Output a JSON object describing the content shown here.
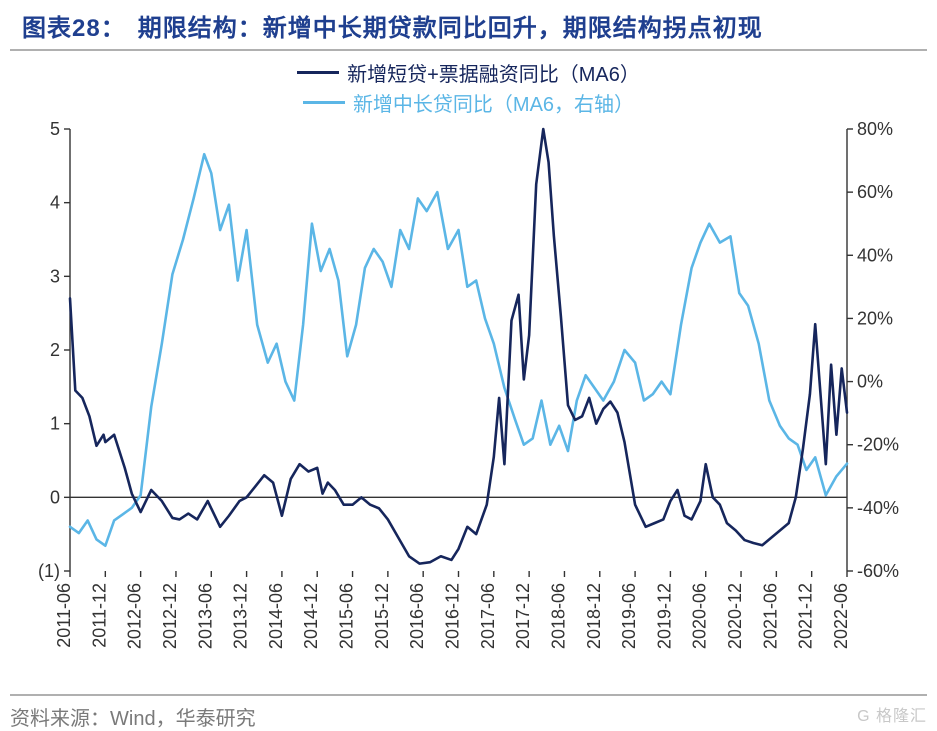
{
  "header": {
    "label": "图表28：",
    "title": "期限结构：新增中长期贷款同比回升，期限结构拐点初现"
  },
  "source": {
    "text": "资料来源：Wind，华泰研究",
    "watermark": "G 格隆汇"
  },
  "chart": {
    "type": "line-dual-axis",
    "background_color": "#ffffff",
    "axis_color": "#333333",
    "axis_stroke_width": 1.4,
    "tick_font_size": 18,
    "tick_color": "#333333",
    "x_labels": [
      "2011-06",
      "2011-12",
      "2012-06",
      "2012-12",
      "2013-06",
      "2013-12",
      "2014-06",
      "2014-12",
      "2015-06",
      "2015-12",
      "2016-06",
      "2016-12",
      "2017-06",
      "2017-12",
      "2018-06",
      "2018-12",
      "2019-06",
      "2019-12",
      "2020-06",
      "2020-12",
      "2021-06",
      "2021-12",
      "2022-06"
    ],
    "y_left": {
      "min": -1,
      "max": 5,
      "step": 1,
      "tick_labels": [
        "(1)",
        "0",
        "1",
        "2",
        "3",
        "4",
        "5"
      ]
    },
    "y_right": {
      "min": -60,
      "max": 80,
      "step": 20,
      "tick_labels": [
        "-60%",
        "-40%",
        "-20%",
        "0%",
        "20%",
        "40%",
        "60%",
        "80%"
      ]
    },
    "legend": [
      {
        "label": "新增短贷+票据融资同比（MA6）",
        "color": "#16265c",
        "width": 3
      },
      {
        "label": "新增中长贷同比（MA6，右轴）",
        "color": "#5bb6e6",
        "width": 3
      }
    ],
    "series1": {
      "name": "新增短贷+票据融资同比（MA6）",
      "axis": "left",
      "color": "#16265c",
      "stroke_width": 2.6,
      "points": [
        [
          0,
          2.7
        ],
        [
          0.15,
          1.45
        ],
        [
          0.35,
          1.35
        ],
        [
          0.55,
          1.1
        ],
        [
          0.75,
          0.7
        ],
        [
          0.95,
          0.85
        ],
        [
          1.0,
          0.75
        ],
        [
          1.25,
          0.85
        ],
        [
          1.55,
          0.4
        ],
        [
          1.75,
          0.05
        ],
        [
          2.0,
          -0.2
        ],
        [
          2.3,
          0.1
        ],
        [
          2.6,
          -0.05
        ],
        [
          2.9,
          -0.28
        ],
        [
          3.1,
          -0.3
        ],
        [
          3.35,
          -0.22
        ],
        [
          3.6,
          -0.3
        ],
        [
          3.9,
          -0.05
        ],
        [
          4.0,
          -0.15
        ],
        [
          4.25,
          -0.4
        ],
        [
          4.5,
          -0.25
        ],
        [
          4.8,
          -0.05
        ],
        [
          5.0,
          0.0
        ],
        [
          5.25,
          0.15
        ],
        [
          5.5,
          0.3
        ],
        [
          5.75,
          0.2
        ],
        [
          6.0,
          -0.25
        ],
        [
          6.25,
          0.25
        ],
        [
          6.5,
          0.45
        ],
        [
          6.75,
          0.35
        ],
        [
          7.0,
          0.4
        ],
        [
          7.15,
          0.05
        ],
        [
          7.3,
          0.2
        ],
        [
          7.5,
          0.1
        ],
        [
          7.75,
          -0.1
        ],
        [
          8.0,
          -0.1
        ],
        [
          8.25,
          0.0
        ],
        [
          8.5,
          -0.1
        ],
        [
          8.75,
          -0.15
        ],
        [
          9.0,
          -0.3
        ],
        [
          9.3,
          -0.55
        ],
        [
          9.6,
          -0.8
        ],
        [
          9.9,
          -0.9
        ],
        [
          10.2,
          -0.88
        ],
        [
          10.5,
          -0.8
        ],
        [
          10.8,
          -0.85
        ],
        [
          11.0,
          -0.7
        ],
        [
          11.25,
          -0.4
        ],
        [
          11.5,
          -0.5
        ],
        [
          11.8,
          -0.1
        ],
        [
          12.0,
          0.55
        ],
        [
          12.15,
          1.35
        ],
        [
          12.3,
          0.45
        ],
        [
          12.5,
          2.4
        ],
        [
          12.7,
          2.75
        ],
        [
          12.85,
          1.6
        ],
        [
          13.0,
          2.2
        ],
        [
          13.2,
          4.25
        ],
        [
          13.4,
          5.0
        ],
        [
          13.55,
          4.55
        ],
        [
          13.7,
          3.55
        ],
        [
          13.9,
          2.45
        ],
        [
          14.1,
          1.25
        ],
        [
          14.3,
          1.05
        ],
        [
          14.5,
          1.1
        ],
        [
          14.7,
          1.35
        ],
        [
          14.9,
          1.0
        ],
        [
          15.1,
          1.2
        ],
        [
          15.3,
          1.3
        ],
        [
          15.5,
          1.15
        ],
        [
          15.7,
          0.75
        ],
        [
          16.0,
          -0.1
        ],
        [
          16.3,
          -0.4
        ],
        [
          16.55,
          -0.35
        ],
        [
          16.8,
          -0.3
        ],
        [
          17.0,
          -0.05
        ],
        [
          17.2,
          0.1
        ],
        [
          17.4,
          -0.25
        ],
        [
          17.6,
          -0.3
        ],
        [
          17.85,
          -0.05
        ],
        [
          18.0,
          0.45
        ],
        [
          18.2,
          0.0
        ],
        [
          18.4,
          -0.1
        ],
        [
          18.6,
          -0.35
        ],
        [
          18.85,
          -0.45
        ],
        [
          19.1,
          -0.58
        ],
        [
          19.35,
          -0.62
        ],
        [
          19.6,
          -0.65
        ],
        [
          19.85,
          -0.55
        ],
        [
          20.1,
          -0.45
        ],
        [
          20.35,
          -0.35
        ],
        [
          20.55,
          0.0
        ],
        [
          20.75,
          0.65
        ],
        [
          20.95,
          1.4
        ],
        [
          21.1,
          2.35
        ],
        [
          21.25,
          1.4
        ],
        [
          21.4,
          0.45
        ],
        [
          21.55,
          1.8
        ],
        [
          21.7,
          0.85
        ],
        [
          21.85,
          1.75
        ],
        [
          22.0,
          1.15
        ]
      ]
    },
    "series2": {
      "name": "新增中长贷同比（MA6，右轴）",
      "axis": "right",
      "color": "#5bb6e6",
      "stroke_width": 2.6,
      "points": [
        [
          0,
          -46
        ],
        [
          0.25,
          -48
        ],
        [
          0.5,
          -44
        ],
        [
          0.75,
          -50
        ],
        [
          1.0,
          -52
        ],
        [
          1.25,
          -44
        ],
        [
          1.5,
          -42
        ],
        [
          1.75,
          -40
        ],
        [
          2.0,
          -36
        ],
        [
          2.3,
          -8
        ],
        [
          2.6,
          12
        ],
        [
          2.9,
          34
        ],
        [
          3.2,
          45
        ],
        [
          3.5,
          58
        ],
        [
          3.8,
          72
        ],
        [
          4.0,
          66
        ],
        [
          4.25,
          48
        ],
        [
          4.5,
          56
        ],
        [
          4.75,
          32
        ],
        [
          5.0,
          48
        ],
        [
          5.3,
          18
        ],
        [
          5.6,
          6
        ],
        [
          5.85,
          12
        ],
        [
          6.1,
          0
        ],
        [
          6.35,
          -6
        ],
        [
          6.6,
          18
        ],
        [
          6.85,
          50
        ],
        [
          7.1,
          35
        ],
        [
          7.35,
          42
        ],
        [
          7.6,
          32
        ],
        [
          7.85,
          8
        ],
        [
          8.1,
          18
        ],
        [
          8.35,
          36
        ],
        [
          8.6,
          42
        ],
        [
          8.85,
          38
        ],
        [
          9.1,
          30
        ],
        [
          9.35,
          48
        ],
        [
          9.6,
          42
        ],
        [
          9.85,
          58
        ],
        [
          10.1,
          54
        ],
        [
          10.4,
          60
        ],
        [
          10.7,
          42
        ],
        [
          11.0,
          48
        ],
        [
          11.25,
          30
        ],
        [
          11.5,
          32
        ],
        [
          11.75,
          20
        ],
        [
          12.0,
          12
        ],
        [
          12.3,
          -2
        ],
        [
          12.6,
          -12
        ],
        [
          12.85,
          -20
        ],
        [
          13.1,
          -18
        ],
        [
          13.35,
          -6
        ],
        [
          13.6,
          -20
        ],
        [
          13.85,
          -14
        ],
        [
          14.1,
          -22
        ],
        [
          14.35,
          -6
        ],
        [
          14.6,
          2
        ],
        [
          14.85,
          -2
        ],
        [
          15.1,
          -6
        ],
        [
          15.4,
          0
        ],
        [
          15.7,
          10
        ],
        [
          16.0,
          6
        ],
        [
          16.25,
          -6
        ],
        [
          16.5,
          -4
        ],
        [
          16.75,
          0
        ],
        [
          17.0,
          -4
        ],
        [
          17.3,
          18
        ],
        [
          17.6,
          36
        ],
        [
          17.85,
          44
        ],
        [
          18.1,
          50
        ],
        [
          18.4,
          44
        ],
        [
          18.7,
          46
        ],
        [
          18.95,
          28
        ],
        [
          19.2,
          24
        ],
        [
          19.5,
          12
        ],
        [
          19.8,
          -6
        ],
        [
          20.1,
          -14
        ],
        [
          20.35,
          -18
        ],
        [
          20.6,
          -20
        ],
        [
          20.85,
          -28
        ],
        [
          21.1,
          -24
        ],
        [
          21.4,
          -36
        ],
        [
          21.7,
          -30
        ],
        [
          22.0,
          -26
        ]
      ]
    }
  }
}
